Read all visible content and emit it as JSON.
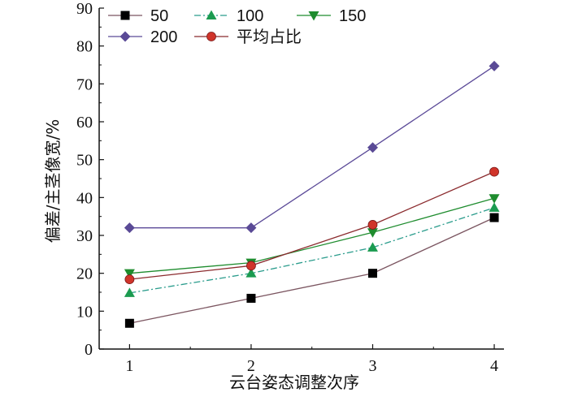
{
  "chart_data": {
    "type": "line",
    "title": "",
    "xlabel": "云台姿态调整次序",
    "ylabel": "偏差/主茎像宽/%",
    "x": [
      1,
      2,
      3,
      4
    ],
    "x_ticks": [
      "1",
      "2",
      "3",
      "4"
    ],
    "y_ticks": [
      "0",
      "10",
      "20",
      "30",
      "40",
      "50",
      "60",
      "70",
      "80",
      "90"
    ],
    "ylim": [
      0,
      90
    ],
    "xlim": [
      0.75,
      4.08
    ],
    "grid": false,
    "legend_position": "top-left",
    "series": [
      {
        "name": "50",
        "values": [
          6.8,
          13.4,
          20.0,
          34.7
        ],
        "color": "#7b5560",
        "marker": "square",
        "marker_color": "#000000",
        "dash": "solid"
      },
      {
        "name": "100",
        "values": [
          14.8,
          20.0,
          26.8,
          37.3
        ],
        "color": "#2a9c8c",
        "marker": "triangle-up",
        "marker_color": "#1b9b50",
        "dash": "dashdot"
      },
      {
        "name": "150",
        "values": [
          20.0,
          22.8,
          30.8,
          39.8
        ],
        "color": "#1e8c2e",
        "marker": "triangle-down",
        "marker_color": "#1e8c2e",
        "dash": "solid"
      },
      {
        "name": "200",
        "values": [
          32.0,
          32.0,
          53.2,
          74.7
        ],
        "color": "#5b4a98",
        "marker": "diamond",
        "marker_color": "#5a4a96",
        "dash": "solid"
      },
      {
        "name": "平均占比",
        "values": [
          18.4,
          22.0,
          32.8,
          46.8
        ],
        "color": "#8b2b2e",
        "marker": "circle",
        "marker_color": "#d0342a",
        "dash": "solid"
      }
    ]
  }
}
